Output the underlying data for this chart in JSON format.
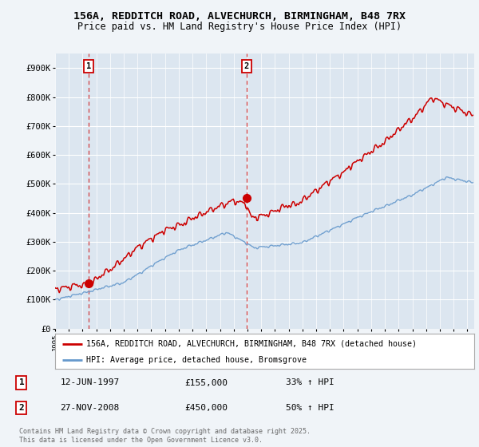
{
  "title_line1": "156A, REDDITCH ROAD, ALVECHURCH, BIRMINGHAM, B48 7RX",
  "title_line2": "Price paid vs. HM Land Registry's House Price Index (HPI)",
  "ylim": [
    0,
    950000
  ],
  "xlim_start": 1995.0,
  "xlim_end": 2025.5,
  "fig_bg_color": "#f0f4f8",
  "plot_bg_color": "#dce6f0",
  "grid_color": "#ffffff",
  "red_line_color": "#cc0000",
  "blue_line_color": "#6699cc",
  "marker1_x": 1997.44,
  "marker1_y": 155000,
  "marker2_x": 2008.92,
  "marker2_y": 450000,
  "sale1_date": "12-JUN-1997",
  "sale1_price": "£155,000",
  "sale1_hpi": "33% ↑ HPI",
  "sale2_date": "27-NOV-2008",
  "sale2_price": "£450,000",
  "sale2_hpi": "50% ↑ HPI",
  "legend_red": "156A, REDDITCH ROAD, ALVECHURCH, BIRMINGHAM, B48 7RX (detached house)",
  "legend_blue": "HPI: Average price, detached house, Bromsgrove",
  "copyright_text": "Contains HM Land Registry data © Crown copyright and database right 2025.\nThis data is licensed under the Open Government Licence v3.0.",
  "yticks": [
    0,
    100000,
    200000,
    300000,
    400000,
    500000,
    600000,
    700000,
    800000,
    900000
  ],
  "ytick_labels": [
    "£0",
    "£100K",
    "£200K",
    "£300K",
    "£400K",
    "£500K",
    "£600K",
    "£700K",
    "£800K",
    "£900K"
  ]
}
